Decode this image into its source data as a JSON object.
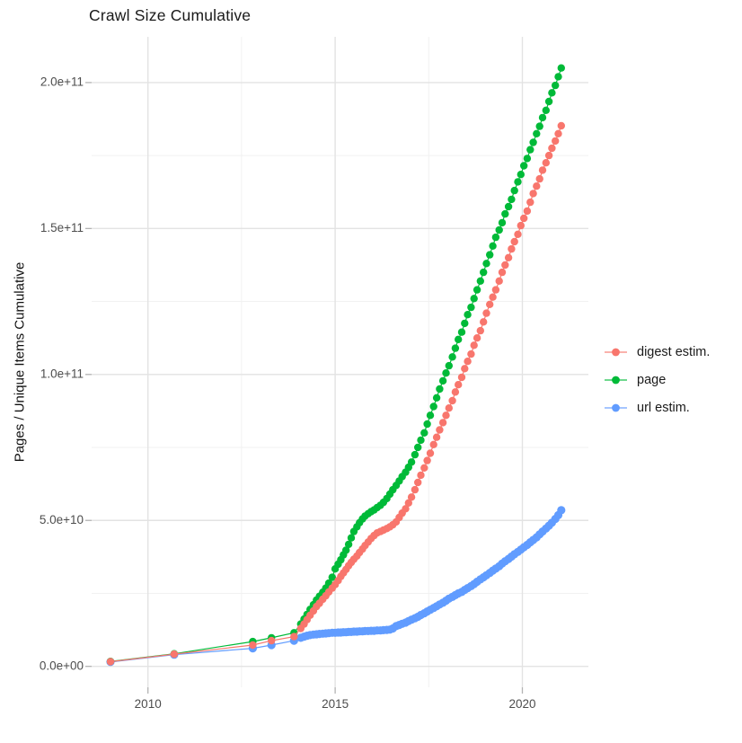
{
  "title": "Crawl Size Cumulative",
  "y_axis": {
    "label": "Pages / Unique Items Cumulative",
    "tick_labels": [
      "0.0e+00",
      "5.0e+10",
      "1.0e+11",
      "1.5e+11",
      "2.0e+11"
    ],
    "tick_values_1e10": [
      0,
      5,
      10,
      15,
      20
    ]
  },
  "x_axis": {
    "tick_labels": [
      "2010",
      "2015",
      "2020"
    ],
    "tick_values": [
      2010,
      2015,
      2020
    ],
    "minor_values": [
      2012.5,
      2017.5
    ]
  },
  "legend": [
    {
      "label": "digest estim.",
      "color": "#F8766D"
    },
    {
      "label": "page",
      "color": "#00BA38"
    },
    {
      "label": "url estim.",
      "color": "#619CFF"
    }
  ],
  "chart_data": {
    "type": "line",
    "style": "points-with-line",
    "title": "Crawl Size Cumulative",
    "xlabel": "",
    "ylabel": "Pages / Unique Items Cumulative",
    "x_unit": "year",
    "value_unit": "1e10",
    "xlim": [
      2008.5,
      2021.8
    ],
    "ylim_1e10": [
      0,
      21.5
    ],
    "grid": true,
    "legend_position": "right",
    "series": [
      {
        "name": "url estim.",
        "color": "#619CFF",
        "point_radius": 4.6,
        "points": [
          [
            2009.0,
            0.15
          ],
          [
            2010.7,
            0.4
          ],
          [
            2012.8,
            0.62
          ],
          [
            2013.3,
            0.73
          ],
          [
            2013.9,
            0.88
          ],
          [
            2014.08,
            0.98
          ],
          [
            2014.17,
            1.02
          ],
          [
            2014.25,
            1.05
          ],
          [
            2014.33,
            1.07
          ],
          [
            2014.42,
            1.09
          ],
          [
            2014.5,
            1.1
          ],
          [
            2014.58,
            1.11
          ],
          [
            2014.67,
            1.12
          ],
          [
            2014.75,
            1.13
          ],
          [
            2014.83,
            1.14
          ],
          [
            2014.92,
            1.15
          ],
          [
            2015.0,
            1.15
          ],
          [
            2015.08,
            1.16
          ],
          [
            2015.15,
            1.16
          ],
          [
            2015.22,
            1.17
          ],
          [
            2015.29,
            1.17
          ],
          [
            2015.36,
            1.18
          ],
          [
            2015.43,
            1.18
          ],
          [
            2015.5,
            1.19
          ],
          [
            2015.58,
            1.19
          ],
          [
            2015.65,
            1.2
          ],
          [
            2015.73,
            1.2
          ],
          [
            2015.8,
            1.21
          ],
          [
            2015.88,
            1.21
          ],
          [
            2015.96,
            1.22
          ],
          [
            2016.04,
            1.22
          ],
          [
            2016.12,
            1.23
          ],
          [
            2016.21,
            1.23
          ],
          [
            2016.29,
            1.24
          ],
          [
            2016.38,
            1.25
          ],
          [
            2016.46,
            1.26
          ],
          [
            2016.54,
            1.3
          ],
          [
            2016.63,
            1.38
          ],
          [
            2016.71,
            1.42
          ],
          [
            2016.79,
            1.46
          ],
          [
            2016.88,
            1.5
          ],
          [
            2016.96,
            1.55
          ],
          [
            2017.04,
            1.6
          ],
          [
            2017.13,
            1.65
          ],
          [
            2017.21,
            1.7
          ],
          [
            2017.29,
            1.76
          ],
          [
            2017.38,
            1.82
          ],
          [
            2017.46,
            1.88
          ],
          [
            2017.54,
            1.94
          ],
          [
            2017.63,
            2.0
          ],
          [
            2017.71,
            2.06
          ],
          [
            2017.79,
            2.12
          ],
          [
            2017.88,
            2.18
          ],
          [
            2017.96,
            2.25
          ],
          [
            2018.04,
            2.32
          ],
          [
            2018.13,
            2.38
          ],
          [
            2018.21,
            2.44
          ],
          [
            2018.29,
            2.5
          ],
          [
            2018.38,
            2.55
          ],
          [
            2018.46,
            2.62
          ],
          [
            2018.54,
            2.68
          ],
          [
            2018.63,
            2.75
          ],
          [
            2018.71,
            2.82
          ],
          [
            2018.79,
            2.9
          ],
          [
            2018.88,
            2.98
          ],
          [
            2018.96,
            3.05
          ],
          [
            2019.04,
            3.12
          ],
          [
            2019.13,
            3.2
          ],
          [
            2019.21,
            3.28
          ],
          [
            2019.29,
            3.35
          ],
          [
            2019.38,
            3.43
          ],
          [
            2019.46,
            3.52
          ],
          [
            2019.54,
            3.6
          ],
          [
            2019.63,
            3.68
          ],
          [
            2019.71,
            3.76
          ],
          [
            2019.79,
            3.84
          ],
          [
            2019.88,
            3.92
          ],
          [
            2019.96,
            4.0
          ],
          [
            2020.04,
            4.08
          ],
          [
            2020.13,
            4.16
          ],
          [
            2020.21,
            4.25
          ],
          [
            2020.29,
            4.33
          ],
          [
            2020.38,
            4.42
          ],
          [
            2020.46,
            4.52
          ],
          [
            2020.54,
            4.62
          ],
          [
            2020.63,
            4.72
          ],
          [
            2020.71,
            4.82
          ],
          [
            2020.79,
            4.92
          ],
          [
            2020.88,
            5.05
          ],
          [
            2020.96,
            5.18
          ],
          [
            2021.04,
            5.35
          ]
        ]
      },
      {
        "name": "page",
        "color": "#00BA38",
        "point_radius": 4.2,
        "points": [
          [
            2009.0,
            0.17
          ],
          [
            2010.7,
            0.43
          ],
          [
            2012.8,
            0.85
          ],
          [
            2013.3,
            0.98
          ],
          [
            2013.9,
            1.15
          ],
          [
            2014.08,
            1.45
          ],
          [
            2014.17,
            1.62
          ],
          [
            2014.25,
            1.78
          ],
          [
            2014.33,
            1.95
          ],
          [
            2014.42,
            2.11
          ],
          [
            2014.5,
            2.27
          ],
          [
            2014.58,
            2.4
          ],
          [
            2014.67,
            2.54
          ],
          [
            2014.75,
            2.68
          ],
          [
            2014.83,
            2.85
          ],
          [
            2014.92,
            3.05
          ],
          [
            2015.0,
            3.34
          ],
          [
            2015.08,
            3.5
          ],
          [
            2015.15,
            3.65
          ],
          [
            2015.22,
            3.82
          ],
          [
            2015.29,
            3.98
          ],
          [
            2015.36,
            4.18
          ],
          [
            2015.43,
            4.4
          ],
          [
            2015.5,
            4.62
          ],
          [
            2015.58,
            4.78
          ],
          [
            2015.65,
            4.92
          ],
          [
            2015.73,
            5.05
          ],
          [
            2015.8,
            5.15
          ],
          [
            2015.88,
            5.23
          ],
          [
            2015.96,
            5.3
          ],
          [
            2016.04,
            5.36
          ],
          [
            2016.12,
            5.44
          ],
          [
            2016.21,
            5.52
          ],
          [
            2016.29,
            5.62
          ],
          [
            2016.38,
            5.75
          ],
          [
            2016.46,
            5.9
          ],
          [
            2016.54,
            6.05
          ],
          [
            2016.63,
            6.2
          ],
          [
            2016.71,
            6.35
          ],
          [
            2016.79,
            6.5
          ],
          [
            2016.88,
            6.65
          ],
          [
            2016.96,
            6.82
          ],
          [
            2017.04,
            7.0
          ],
          [
            2017.13,
            7.25
          ],
          [
            2017.21,
            7.5
          ],
          [
            2017.29,
            7.75
          ],
          [
            2017.38,
            8.0
          ],
          [
            2017.46,
            8.3
          ],
          [
            2017.54,
            8.6
          ],
          [
            2017.63,
            8.9
          ],
          [
            2017.71,
            9.2
          ],
          [
            2017.79,
            9.5
          ],
          [
            2017.88,
            9.78
          ],
          [
            2017.96,
            10.05
          ],
          [
            2018.04,
            10.3
          ],
          [
            2018.13,
            10.6
          ],
          [
            2018.21,
            10.9
          ],
          [
            2018.29,
            11.2
          ],
          [
            2018.38,
            11.45
          ],
          [
            2018.46,
            11.75
          ],
          [
            2018.54,
            12.05
          ],
          [
            2018.63,
            12.3
          ],
          [
            2018.71,
            12.6
          ],
          [
            2018.79,
            12.9
          ],
          [
            2018.88,
            13.2
          ],
          [
            2018.96,
            13.5
          ],
          [
            2019.04,
            13.8
          ],
          [
            2019.13,
            14.1
          ],
          [
            2019.21,
            14.4
          ],
          [
            2019.29,
            14.7
          ],
          [
            2019.38,
            14.95
          ],
          [
            2019.46,
            15.2
          ],
          [
            2019.54,
            15.5
          ],
          [
            2019.63,
            15.75
          ],
          [
            2019.71,
            16.0
          ],
          [
            2019.79,
            16.3
          ],
          [
            2019.88,
            16.6
          ],
          [
            2019.96,
            16.85
          ],
          [
            2020.04,
            17.15
          ],
          [
            2020.13,
            17.4
          ],
          [
            2020.21,
            17.7
          ],
          [
            2020.29,
            17.95
          ],
          [
            2020.38,
            18.25
          ],
          [
            2020.46,
            18.5
          ],
          [
            2020.54,
            18.8
          ],
          [
            2020.63,
            19.05
          ],
          [
            2020.71,
            19.35
          ],
          [
            2020.79,
            19.65
          ],
          [
            2020.88,
            19.9
          ],
          [
            2020.96,
            20.2
          ],
          [
            2021.04,
            20.5
          ]
        ]
      },
      {
        "name": "digest estim.",
        "color": "#F8766D",
        "point_radius": 4.2,
        "points": [
          [
            2009.0,
            0.16
          ],
          [
            2010.7,
            0.42
          ],
          [
            2012.8,
            0.73
          ],
          [
            2013.3,
            0.88
          ],
          [
            2013.9,
            1.02
          ],
          [
            2014.08,
            1.3
          ],
          [
            2014.17,
            1.45
          ],
          [
            2014.25,
            1.6
          ],
          [
            2014.33,
            1.75
          ],
          [
            2014.42,
            1.9
          ],
          [
            2014.5,
            2.05
          ],
          [
            2014.58,
            2.16
          ],
          [
            2014.67,
            2.3
          ],
          [
            2014.75,
            2.42
          ],
          [
            2014.83,
            2.55
          ],
          [
            2014.92,
            2.68
          ],
          [
            2015.0,
            2.8
          ],
          [
            2015.08,
            2.94
          ],
          [
            2015.15,
            3.08
          ],
          [
            2015.22,
            3.2
          ],
          [
            2015.29,
            3.32
          ],
          [
            2015.36,
            3.45
          ],
          [
            2015.43,
            3.56
          ],
          [
            2015.5,
            3.67
          ],
          [
            2015.58,
            3.78
          ],
          [
            2015.65,
            3.9
          ],
          [
            2015.73,
            4.02
          ],
          [
            2015.8,
            4.14
          ],
          [
            2015.88,
            4.26
          ],
          [
            2015.96,
            4.38
          ],
          [
            2016.04,
            4.48
          ],
          [
            2016.12,
            4.57
          ],
          [
            2016.21,
            4.62
          ],
          [
            2016.29,
            4.67
          ],
          [
            2016.38,
            4.72
          ],
          [
            2016.46,
            4.78
          ],
          [
            2016.54,
            4.85
          ],
          [
            2016.63,
            4.95
          ],
          [
            2016.71,
            5.1
          ],
          [
            2016.79,
            5.25
          ],
          [
            2016.88,
            5.4
          ],
          [
            2016.96,
            5.6
          ],
          [
            2017.04,
            5.8
          ],
          [
            2017.13,
            6.05
          ],
          [
            2017.21,
            6.3
          ],
          [
            2017.29,
            6.55
          ],
          [
            2017.38,
            6.8
          ],
          [
            2017.46,
            7.05
          ],
          [
            2017.54,
            7.3
          ],
          [
            2017.63,
            7.6
          ],
          [
            2017.71,
            7.85
          ],
          [
            2017.79,
            8.1
          ],
          [
            2017.88,
            8.35
          ],
          [
            2017.96,
            8.6
          ],
          [
            2018.04,
            8.85
          ],
          [
            2018.13,
            9.1
          ],
          [
            2018.21,
            9.4
          ],
          [
            2018.29,
            9.65
          ],
          [
            2018.38,
            9.9
          ],
          [
            2018.46,
            10.2
          ],
          [
            2018.54,
            10.45
          ],
          [
            2018.63,
            10.7
          ],
          [
            2018.71,
            11.0
          ],
          [
            2018.79,
            11.25
          ],
          [
            2018.88,
            11.5
          ],
          [
            2018.96,
            11.8
          ],
          [
            2019.04,
            12.1
          ],
          [
            2019.13,
            12.4
          ],
          [
            2019.21,
            12.65
          ],
          [
            2019.29,
            12.9
          ],
          [
            2019.38,
            13.2
          ],
          [
            2019.46,
            13.5
          ],
          [
            2019.54,
            13.75
          ],
          [
            2019.63,
            14.0
          ],
          [
            2019.71,
            14.3
          ],
          [
            2019.79,
            14.55
          ],
          [
            2019.88,
            14.8
          ],
          [
            2019.96,
            15.1
          ],
          [
            2020.04,
            15.35
          ],
          [
            2020.13,
            15.6
          ],
          [
            2020.21,
            15.9
          ],
          [
            2020.29,
            16.2
          ],
          [
            2020.38,
            16.45
          ],
          [
            2020.46,
            16.7
          ],
          [
            2020.54,
            17.0
          ],
          [
            2020.63,
            17.25
          ],
          [
            2020.71,
            17.5
          ],
          [
            2020.79,
            17.75
          ],
          [
            2020.88,
            18.0
          ],
          [
            2020.96,
            18.25
          ],
          [
            2021.04,
            18.52
          ]
        ]
      }
    ]
  }
}
